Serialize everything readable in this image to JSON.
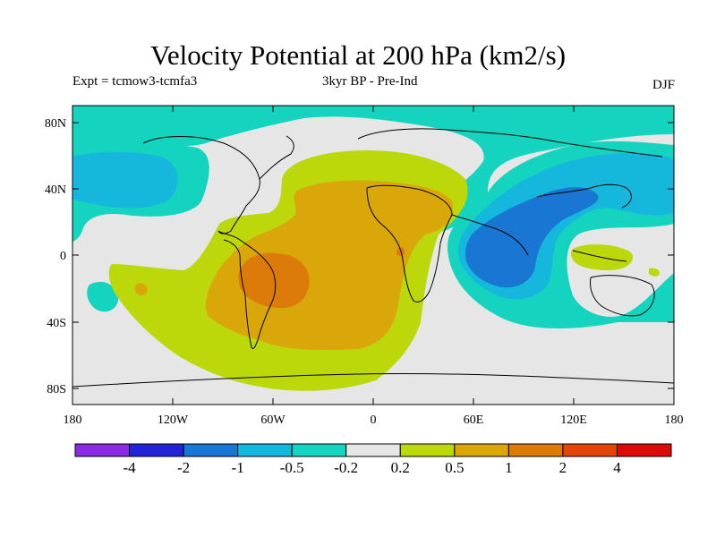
{
  "title": "Velocity Potential at 200 hPa (km2/s)",
  "subtitle_left": "Expt = tcmow3-tcmfa3",
  "subtitle_center": "3kyr BP - Pre-Ind",
  "subtitle_right": "DJF",
  "lat_labels": [
    "80N",
    "40N",
    "0",
    "40S",
    "80S"
  ],
  "lon_labels": [
    "180",
    "120W",
    "60W",
    "0",
    "60E",
    "120E",
    "180"
  ],
  "colorbar": {
    "colors": [
      "#8a2be2",
      "#2323d8",
      "#1976d2",
      "#15b8dc",
      "#14d4c0",
      "#e6e6e6",
      "#bcd80a",
      "#d9a70a",
      "#dc7a0a",
      "#e2460a",
      "#dc0a0a"
    ],
    "labels": [
      "-4",
      "-2",
      "-1",
      "-0.5",
      "-0.2",
      "0.2",
      "0.5",
      "1",
      "2",
      "4"
    ]
  }
}
